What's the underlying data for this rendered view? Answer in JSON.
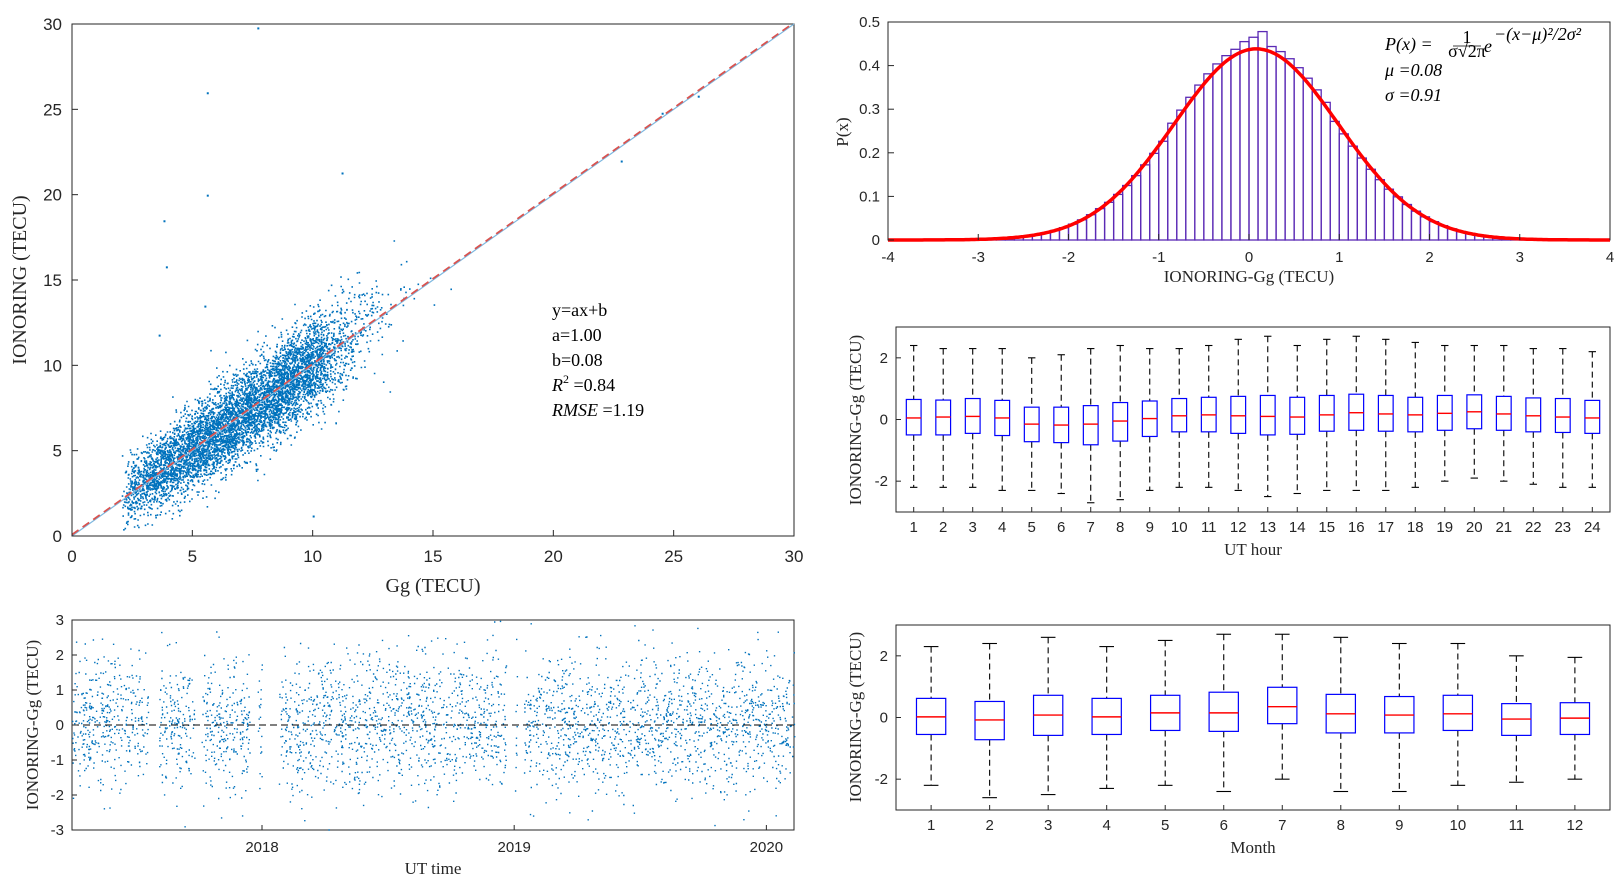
{
  "colors": {
    "scatter": "#0072BD",
    "fit_line": "#D9534F",
    "hist_edge": "#5B2AB5",
    "pdf_curve": "#FF0000",
    "box": "#0000FF",
    "median": "#FF0000",
    "whisker": "#000000"
  },
  "chart_data": [
    {
      "id": "scatter",
      "type": "scatter",
      "xlabel": "Gg (TECU)",
      "ylabel": "IONORING (TECU)",
      "xlim": [
        0,
        30
      ],
      "ylim": [
        0,
        30
      ],
      "xticks": [
        "0",
        "5",
        "10",
        "15",
        "20",
        "25",
        "30"
      ],
      "yticks": [
        "0",
        "5",
        "10",
        "15",
        "20",
        "25",
        "30"
      ],
      "fit": {
        "slope": 1.0,
        "intercept": 0.08
      },
      "outliers": [
        [
          7.7,
          29.8
        ],
        [
          5.6,
          26.0
        ],
        [
          5.6,
          20.0
        ],
        [
          3.8,
          18.5
        ],
        [
          3.9,
          15.8
        ],
        [
          5.5,
          13.5
        ],
        [
          3.6,
          11.8
        ],
        [
          11.2,
          21.3
        ],
        [
          10.0,
          1.2
        ],
        [
          24.5,
          24.8
        ],
        [
          26.0,
          25.8
        ],
        [
          22.8,
          22.0
        ]
      ],
      "annotations": [
        "y=ax+b",
        "a=1.00",
        "b=0.08",
        "R",
        "2",
        " =0.84",
        "RMSE",
        " =1.19"
      ]
    },
    {
      "id": "histogram",
      "type": "bar",
      "xlabel": "IONORING-Gg (TECU)",
      "ylabel": "P(x)",
      "xlim": [
        -4,
        4
      ],
      "ylim": [
        0,
        0.5
      ],
      "xticks": [
        "-4",
        "-3",
        "-2",
        "-1",
        "0",
        "1",
        "2",
        "3",
        "4"
      ],
      "yticks": [
        "0",
        "0.1",
        "0.2",
        "0.3",
        "0.4",
        "0.5"
      ],
      "mu": 0.08,
      "sigma": 0.91,
      "bin_width": 0.1,
      "peak_bars": [
        {
          "x": 0.05,
          "y": 0.465
        },
        {
          "x": 0.15,
          "y": 0.478
        },
        {
          "x": -0.05,
          "y": 0.455
        }
      ],
      "annotations": {
        "formula_lhs": "P(x) =",
        "formula_num": "1",
        "formula_den": "σ√2π",
        "formula_e": "e",
        "formula_exp": "−(x−μ)²/2σ²",
        "mu": "μ =0.08",
        "sigma": "σ =0.91"
      }
    },
    {
      "id": "hourly-box",
      "type": "box",
      "xlabel": "UT hour",
      "ylabel": "IONORING-Gg (TECU)",
      "ylim": [
        -3,
        3
      ],
      "yticks": [
        "-2",
        "0",
        "2"
      ],
      "categories": [
        "1",
        "2",
        "3",
        "4",
        "5",
        "6",
        "7",
        "8",
        "9",
        "10",
        "11",
        "12",
        "13",
        "14",
        "15",
        "16",
        "17",
        "18",
        "19",
        "20",
        "21",
        "22",
        "23",
        "24"
      ],
      "boxes": [
        {
          "q1": -0.5,
          "med": 0.05,
          "q3": 0.65,
          "lo": -2.2,
          "hi": 2.4
        },
        {
          "q1": -0.5,
          "med": 0.08,
          "q3": 0.63,
          "lo": -2.2,
          "hi": 2.3
        },
        {
          "q1": -0.45,
          "med": 0.1,
          "q3": 0.68,
          "lo": -2.2,
          "hi": 2.3
        },
        {
          "q1": -0.52,
          "med": 0.05,
          "q3": 0.62,
          "lo": -2.3,
          "hi": 2.3
        },
        {
          "q1": -0.72,
          "med": -0.15,
          "q3": 0.4,
          "lo": -2.3,
          "hi": 2.0
        },
        {
          "q1": -0.75,
          "med": -0.18,
          "q3": 0.4,
          "lo": -2.4,
          "hi": 2.1
        },
        {
          "q1": -0.82,
          "med": -0.15,
          "q3": 0.45,
          "lo": -2.7,
          "hi": 2.3
        },
        {
          "q1": -0.7,
          "med": -0.05,
          "q3": 0.55,
          "lo": -2.6,
          "hi": 2.4
        },
        {
          "q1": -0.55,
          "med": 0.03,
          "q3": 0.6,
          "lo": -2.3,
          "hi": 2.3
        },
        {
          "q1": -0.4,
          "med": 0.12,
          "q3": 0.68,
          "lo": -2.2,
          "hi": 2.3
        },
        {
          "q1": -0.4,
          "med": 0.15,
          "q3": 0.72,
          "lo": -2.2,
          "hi": 2.4
        },
        {
          "q1": -0.45,
          "med": 0.12,
          "q3": 0.75,
          "lo": -2.3,
          "hi": 2.6
        },
        {
          "q1": -0.5,
          "med": 0.1,
          "q3": 0.78,
          "lo": -2.5,
          "hi": 2.7
        },
        {
          "q1": -0.48,
          "med": 0.08,
          "q3": 0.72,
          "lo": -2.4,
          "hi": 2.4
        },
        {
          "q1": -0.38,
          "med": 0.15,
          "q3": 0.78,
          "lo": -2.3,
          "hi": 2.6
        },
        {
          "q1": -0.35,
          "med": 0.22,
          "q3": 0.82,
          "lo": -2.3,
          "hi": 2.7
        },
        {
          "q1": -0.38,
          "med": 0.18,
          "q3": 0.78,
          "lo": -2.3,
          "hi": 2.6
        },
        {
          "q1": -0.4,
          "med": 0.15,
          "q3": 0.72,
          "lo": -2.2,
          "hi": 2.5
        },
        {
          "q1": -0.35,
          "med": 0.2,
          "q3": 0.78,
          "lo": -2.0,
          "hi": 2.4
        },
        {
          "q1": -0.3,
          "med": 0.25,
          "q3": 0.8,
          "lo": -1.9,
          "hi": 2.4
        },
        {
          "q1": -0.35,
          "med": 0.18,
          "q3": 0.75,
          "lo": -2.0,
          "hi": 2.4
        },
        {
          "q1": -0.4,
          "med": 0.12,
          "q3": 0.7,
          "lo": -2.1,
          "hi": 2.3
        },
        {
          "q1": -0.42,
          "med": 0.08,
          "q3": 0.68,
          "lo": -2.2,
          "hi": 2.3
        },
        {
          "q1": -0.45,
          "med": 0.05,
          "q3": 0.62,
          "lo": -2.2,
          "hi": 2.2
        }
      ]
    },
    {
      "id": "monthly-box",
      "type": "box",
      "xlabel": "Month",
      "ylabel": "IONORING-Gg (TECU)",
      "ylim": [
        -3,
        3
      ],
      "yticks": [
        "-2",
        "0",
        "2"
      ],
      "categories": [
        "1",
        "2",
        "3",
        "4",
        "5",
        "6",
        "7",
        "8",
        "9",
        "10",
        "11",
        "12"
      ],
      "boxes": [
        {
          "q1": -0.55,
          "med": 0.02,
          "q3": 0.62,
          "lo": -2.2,
          "hi": 2.3
        },
        {
          "q1": -0.72,
          "med": -0.08,
          "q3": 0.52,
          "lo": -2.6,
          "hi": 2.4
        },
        {
          "q1": -0.58,
          "med": 0.08,
          "q3": 0.72,
          "lo": -2.5,
          "hi": 2.6
        },
        {
          "q1": -0.55,
          "med": 0.02,
          "q3": 0.62,
          "lo": -2.3,
          "hi": 2.3
        },
        {
          "q1": -0.42,
          "med": 0.15,
          "q3": 0.72,
          "lo": -2.2,
          "hi": 2.5
        },
        {
          "q1": -0.45,
          "med": 0.15,
          "q3": 0.82,
          "lo": -2.4,
          "hi": 2.7
        },
        {
          "q1": -0.2,
          "med": 0.35,
          "q3": 0.98,
          "lo": -2.0,
          "hi": 2.7
        },
        {
          "q1": -0.5,
          "med": 0.12,
          "q3": 0.75,
          "lo": -2.4,
          "hi": 2.6
        },
        {
          "q1": -0.5,
          "med": 0.08,
          "q3": 0.68,
          "lo": -2.4,
          "hi": 2.4
        },
        {
          "q1": -0.42,
          "med": 0.12,
          "q3": 0.72,
          "lo": -2.2,
          "hi": 2.4
        },
        {
          "q1": -0.58,
          "med": -0.05,
          "q3": 0.45,
          "lo": -2.1,
          "hi": 2.0
        },
        {
          "q1": -0.55,
          "med": -0.02,
          "q3": 0.48,
          "lo": -2.0,
          "hi": 1.95
        }
      ]
    },
    {
      "id": "timeseries",
      "type": "scatter",
      "xlabel": "UT time",
      "ylabel": "IONORING-Gg (TECU)",
      "xlim": [
        "2017-04-01",
        "2020-02-10"
      ],
      "ylim": [
        -3,
        3
      ],
      "xticks": [
        "2018",
        "2019",
        "2020"
      ],
      "yticks": [
        "-3",
        "-2",
        "-1",
        "0",
        "1",
        "2",
        "3"
      ],
      "gaps": [
        [
          "2017-07-20",
          "2017-08-05"
        ],
        [
          "2017-09-25",
          "2017-10-05"
        ],
        [
          "2017-12-15",
          "2017-12-25"
        ],
        [
          "2018-01-01",
          "2018-01-25"
        ],
        [
          "2018-12-20",
          "2019-01-02"
        ],
        [
          "2019-01-05",
          "2019-01-15"
        ]
      ]
    }
  ]
}
